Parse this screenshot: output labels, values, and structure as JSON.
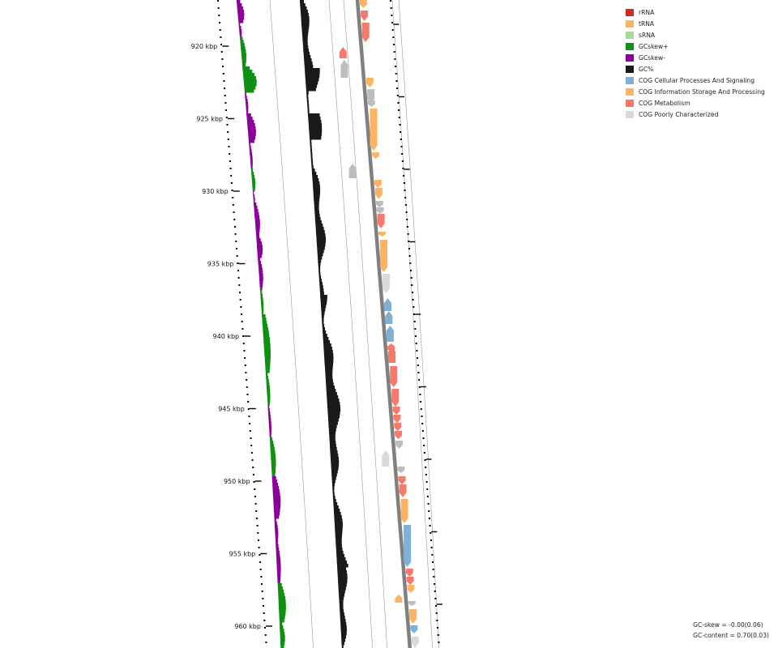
{
  "ruler": {
    "labels": [
      "920 kbp",
      "925 kbp",
      "930 kbp",
      "935 kbp",
      "940 kbp",
      "945 kbp",
      "950 kbp",
      "955 kbp",
      "960 kbp"
    ]
  },
  "legend": [
    {
      "label": "rRNA",
      "color": "#d62728",
      "icon": "rRNA-swatch"
    },
    {
      "label": "tRNA",
      "color": "#fdb462",
      "icon": "tRNA-swatch"
    },
    {
      "label": "sRNA",
      "color": "#a6d99a",
      "icon": "sRNA-swatch"
    },
    {
      "label": "GCskew+",
      "color": "#109010",
      "icon": "gcskew-plus-swatch"
    },
    {
      "label": "GCskew-",
      "color": "#8b009b",
      "icon": "gcskew-minus-swatch"
    },
    {
      "label": "GC%",
      "color": "#1a1a1a",
      "icon": "gc-content-swatch"
    },
    {
      "label": "COG Cellular Processes And Signaling",
      "color": "#7fb0d5",
      "icon": "cog-cellular-swatch"
    },
    {
      "label": "COG Information Storage And Processing",
      "color": "#fdb462",
      "icon": "cog-information-swatch"
    },
    {
      "label": "COG Metabolism",
      "color": "#f8786c",
      "icon": "cog-metabolism-swatch"
    },
    {
      "label": "COG Poorly Characterized",
      "color": "#d9d9d9",
      "icon": "cog-poorly-swatch"
    }
  ],
  "stats": {
    "gc_skew": "GC-skew = -0.00(0.06)",
    "gc_content": "GC-content = 0.70(0.03)"
  },
  "colors": {
    "skew_plus": "#109010",
    "skew_minus": "#8b009b",
    "gc": "#1a1a1a",
    "cellular": "#7fb0d5",
    "information": "#fdb462",
    "metabolism": "#f8786c",
    "poorly": "#d9d9d9",
    "hypo": "#bdbdbd",
    "backbone": "#808080"
  }
}
